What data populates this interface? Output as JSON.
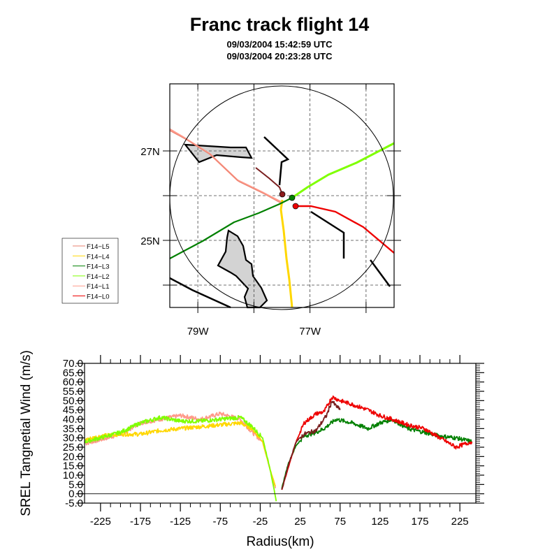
{
  "header": {
    "title": "Franc track flight 14",
    "time_start": "09/03/2004 15:42:59 UTC",
    "time_end": "09/03/2004 20:23:28 UTC"
  },
  "colors": {
    "L5": "#e8806f",
    "L4": "#ffd700",
    "L3": "#008000",
    "L2": "#7fff00",
    "L1": "#ff9a8a",
    "L0": "#ee0000",
    "brown_track": "#7a1f1f",
    "land_fill": "#d3d3d3"
  },
  "map": {
    "lat_labels": [
      "27N",
      "25N"
    ],
    "lon_labels": [
      "79W",
      "77W"
    ],
    "lat_ticks": [
      27,
      25
    ],
    "lon_ticks": [
      -79,
      -77
    ],
    "lon_range": [
      -79.5,
      -75.5
    ],
    "lat_range": [
      23.5,
      28.5
    ],
    "legend": [
      {
        "label": "F14−L5",
        "color_key": "L5"
      },
      {
        "label": "F14−L4",
        "color_key": "L4"
      },
      {
        "label": "F14−L3",
        "color_key": "L3"
      },
      {
        "label": "F14−L2",
        "color_key": "L2"
      },
      {
        "label": "F14−L1",
        "color_key": "L1"
      },
      {
        "label": "F14−L0",
        "color_key": "L0"
      }
    ]
  },
  "chart_data": {
    "type": "line",
    "xlabel": "Radius(km)",
    "ylabel": "SREL Tangnetial Wind (m/s)",
    "xlim": [
      -245,
      245
    ],
    "ylim": [
      -5,
      70
    ],
    "xticks": [
      -225,
      -175,
      -125,
      -75,
      -25,
      25,
      75,
      125,
      175,
      225
    ],
    "yticks": [
      -5.0,
      0.0,
      5.0,
      10.0,
      15.0,
      20.0,
      25.0,
      30.0,
      35.0,
      40.0,
      45.0,
      50.0,
      55.0,
      60.0,
      65.0,
      70.0
    ],
    "xtick_labels": [
      "-225",
      "-175",
      "-125",
      "-75",
      "-25",
      "25",
      "75",
      "125",
      "175",
      "225"
    ],
    "ytick_labels": [
      "-5.0",
      "0.0",
      "5.0",
      "10.0",
      "15.0",
      "20.0",
      "25.0",
      "30.0",
      "35.0",
      "40.0",
      "45.0",
      "50.0",
      "55.0",
      "60.0",
      "65.0",
      "70.0"
    ],
    "reference_line_y": 0,
    "series": [
      {
        "color_key": "L1",
        "x": [
          -244,
          -225,
          -200,
          -175,
          -150,
          -125,
          -100,
          -75,
          -50,
          -35,
          -22,
          -12,
          -6
        ],
        "y": [
          27,
          29,
          32,
          38,
          40,
          42,
          40,
          43,
          40,
          33,
          28,
          12,
          3
        ]
      },
      {
        "color_key": "L4",
        "x": [
          -244,
          -225,
          -200,
          -175,
          -150,
          -125,
          -100,
          -75,
          -50,
          -35,
          -22,
          -12,
          -6
        ],
        "y": [
          29,
          31,
          32,
          32,
          34,
          35,
          36,
          37,
          38,
          35,
          28,
          12,
          4
        ]
      },
      {
        "color_key": "L2",
        "x": [
          -244,
          -225,
          -200,
          -175,
          -150,
          -125,
          -100,
          -75,
          -50,
          -35,
          -22,
          -12,
          -5
        ],
        "y": [
          28,
          30,
          33,
          38,
          41,
          39,
          39,
          40,
          41,
          36,
          30,
          12,
          -4
        ]
      },
      {
        "color_key": "L3",
        "x": [
          2,
          10,
          20,
          30,
          45,
          55,
          70,
          90,
          110,
          125,
          140,
          160,
          180,
          200,
          220,
          240
        ],
        "y": [
          3,
          16,
          26,
          31,
          33,
          35,
          40,
          38,
          35,
          38,
          40,
          35,
          33,
          31,
          30,
          28
        ]
      },
      {
        "color_key": "L0",
        "x": [
          2,
          10,
          20,
          30,
          45,
          55,
          65,
          75,
          90,
          110,
          125,
          140,
          160,
          180,
          200,
          220,
          240
        ],
        "y": [
          2,
          14,
          28,
          38,
          43,
          44,
          52,
          50,
          48,
          45,
          42,
          40,
          37,
          35,
          30,
          25,
          28
        ]
      },
      {
        "color_key": "brown_track",
        "x": [
          2,
          10,
          20,
          30,
          45,
          58,
          65,
          68,
          75
        ],
        "y": [
          2,
          15,
          28,
          32,
          34,
          42,
          50,
          48,
          45
        ]
      }
    ]
  }
}
